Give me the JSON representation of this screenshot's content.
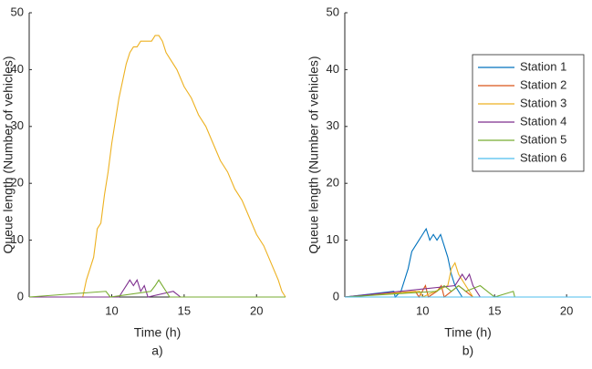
{
  "chart_data": [
    {
      "type": "line",
      "x_label": "Time (h)",
      "y_label": "Queue length (Number of vehicles)",
      "caption": "a)",
      "xlim": [
        4.3,
        22
      ],
      "ylim": [
        0,
        50
      ],
      "xticks": [
        10,
        15,
        20
      ],
      "yticks": [
        0,
        10,
        20,
        30,
        40,
        50
      ],
      "legend": false,
      "series": [
        {
          "color": "#EDB120",
          "x": [
            4.3,
            8.0,
            8.25,
            8.5,
            8.75,
            9.0,
            9.25,
            9.5,
            9.75,
            10.0,
            10.25,
            10.5,
            10.75,
            11.0,
            11.25,
            11.5,
            11.75,
            12.0,
            12.25,
            12.5,
            12.75,
            13.0,
            13.25,
            13.5,
            13.75,
            14.0,
            14.5,
            15.0,
            15.5,
            16.0,
            16.5,
            17.0,
            17.5,
            18.0,
            18.5,
            19.0,
            19.5,
            20.0,
            20.5,
            21.0,
            21.5,
            21.75,
            22.0
          ],
          "values": [
            0,
            0,
            3,
            5,
            7,
            12,
            13,
            18,
            22,
            27,
            31,
            35,
            38,
            41,
            43,
            44,
            44,
            45,
            45,
            45,
            45,
            46,
            46,
            45,
            43,
            42,
            40,
            37,
            35,
            32,
            30,
            27,
            24,
            22,
            19,
            17,
            14,
            11,
            9,
            6,
            3,
            1,
            0
          ]
        },
        {
          "color": "#7E2F8E",
          "x": [
            4.3,
            10.5,
            10.75,
            11.0,
            11.25,
            11.5,
            11.75,
            12.0,
            12.25,
            12.5,
            14.25,
            14.75,
            22.0
          ],
          "values": [
            0,
            0,
            1,
            2,
            3,
            2,
            3,
            1,
            2,
            0,
            1,
            0,
            0
          ]
        },
        {
          "color": "#77AC30",
          "x": [
            4.3,
            9.6,
            9.9,
            12.7,
            13.0,
            13.25,
            13.5,
            13.75,
            14.0,
            22.0
          ],
          "values": [
            0,
            1,
            0,
            1,
            2,
            3,
            2,
            1,
            0,
            0
          ]
        }
      ]
    },
    {
      "type": "line",
      "x_label": "Time (h)",
      "y_label": "Queue length (Number of vehicles)",
      "caption": "b)",
      "xlim": [
        4.6,
        21.7
      ],
      "ylim": [
        0,
        50
      ],
      "xticks": [
        10,
        15,
        20
      ],
      "yticks": [
        0,
        10,
        20,
        30,
        40,
        50
      ],
      "legend": "upper right",
      "series": [
        {
          "name": "Station 1",
          "color": "#0072BD",
          "x": [
            4.6,
            8.0,
            8.1,
            8.5,
            8.75,
            9.0,
            9.25,
            9.5,
            9.75,
            10.0,
            10.25,
            10.5,
            10.75,
            11.0,
            11.25,
            11.5,
            11.75,
            12.0,
            12.25,
            12.5,
            12.75,
            21.7
          ],
          "values": [
            0,
            1,
            0,
            1,
            3,
            5,
            8,
            9,
            10,
            11,
            12,
            10,
            11,
            10,
            11,
            9,
            7,
            4,
            2,
            1,
            0,
            0
          ]
        },
        {
          "name": "Station 2",
          "color": "#D95319",
          "x": [
            4.6,
            9.5,
            9.75,
            10.2,
            10.4,
            11.0,
            11.3,
            11.5,
            12.0,
            12.5,
            13.0,
            13.5,
            21.7
          ],
          "values": [
            0,
            1,
            0,
            2,
            0,
            1,
            2,
            0,
            1,
            2,
            1,
            0,
            0
          ]
        },
        {
          "name": "Station 3",
          "color": "#EDB120",
          "x": [
            4.6,
            9.8,
            10.0,
            11.75,
            12.0,
            12.25,
            12.5,
            12.75,
            13.0,
            13.25,
            13.5,
            21.7
          ],
          "values": [
            0,
            1,
            0,
            2,
            5,
            6,
            4,
            3,
            2,
            1,
            0,
            0
          ]
        },
        {
          "name": "Station 4",
          "color": "#7E2F8E",
          "x": [
            4.6,
            12.25,
            12.5,
            12.75,
            13.0,
            13.25,
            13.5,
            13.75,
            14.0,
            21.7
          ],
          "values": [
            0,
            2,
            3,
            4,
            3,
            4,
            2,
            1,
            0,
            0
          ]
        },
        {
          "name": "Station 5",
          "color": "#77AC30",
          "x": [
            4.6,
            11.0,
            11.5,
            12.0,
            12.5,
            13.0,
            14.0,
            14.5,
            15.0,
            16.3,
            16.4,
            21.7
          ],
          "values": [
            0,
            1,
            2,
            1,
            2,
            1,
            2,
            1,
            0,
            1,
            0,
            0
          ]
        },
        {
          "name": "Station 6",
          "color": "#4DBEEE",
          "x": [
            4.6,
            21.7
          ],
          "values": [
            0,
            0
          ]
        }
      ]
    }
  ]
}
